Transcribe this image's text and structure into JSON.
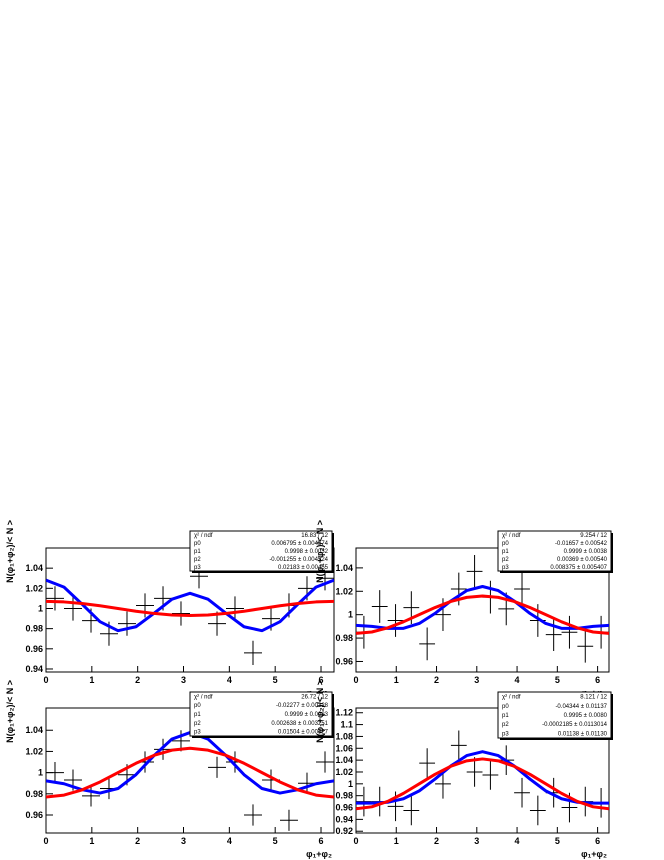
{
  "chart_data": [
    {
      "type": "errorbar",
      "ylabel": "N(φ₁+φ₂)/< N >",
      "xlabel": "φ₁+φ₂",
      "stats": [
        {
          "label": "χ² / ndf",
          "value": "16.83 / 12"
        },
        {
          "label": "p0",
          "value": "0.006795 ± 0.004574"
        },
        {
          "label": "p1",
          "value": "0.9998 ± 0.0032"
        },
        {
          "label": "p2",
          "value": "-0.001255 ± 0.004524"
        },
        {
          "label": "p3",
          "value": "0.02183 ± 0.00455"
        }
      ],
      "xlim": [
        0,
        6.2832
      ],
      "xticks": [
        0,
        1,
        2,
        3,
        4,
        5,
        6
      ],
      "ylim": [
        0.937,
        1.06
      ],
      "yticks": [
        0.94,
        0.96,
        0.98,
        1,
        1.02,
        1.04
      ],
      "points": {
        "color": "#000000",
        "x": [
          0.196,
          0.589,
          0.982,
          1.374,
          1.767,
          2.16,
          2.553,
          2.945,
          3.338,
          3.731,
          4.123,
          4.516,
          4.909,
          5.301,
          5.694,
          6.087
        ],
        "values": [
          1.01,
          1.0,
          0.988,
          0.975,
          0.985,
          1.003,
          1.01,
          0.995,
          1.032,
          0.985,
          1.0,
          0.956,
          0.99,
          1.003,
          1.02,
          1.03
        ],
        "xerr": 0.196,
        "yerr": 0.012
      },
      "series": [
        {
          "color": "#0000ff",
          "x": [
            0,
            0.393,
            0.785,
            1.178,
            1.571,
            1.963,
            2.356,
            2.749,
            3.142,
            3.534,
            3.927,
            4.32,
            4.712,
            5.105,
            5.498,
            5.89,
            6.283
          ],
          "values": [
            1.0281,
            1.0212,
            1.0044,
            0.9869,
            0.978,
            0.9819,
            0.9952,
            1.0092,
            1.0151,
            1.0092,
            0.9952,
            0.9819,
            0.978,
            0.9869,
            1.0044,
            1.0212,
            1.0281
          ]
        },
        {
          "color": "#ff0000",
          "x": [
            0,
            0.393,
            0.785,
            1.178,
            1.571,
            1.963,
            2.356,
            2.749,
            3.142,
            3.534,
            3.927,
            4.32,
            4.712,
            5.105,
            5.498,
            5.89,
            6.283
          ],
          "values": [
            1.007,
            1.0065,
            1.0049,
            1.0027,
            1.0,
            0.9973,
            0.9951,
            0.9935,
            0.993,
            0.9935,
            0.9951,
            0.9973,
            1.0,
            1.0027,
            1.0049,
            1.0065,
            1.007
          ]
        }
      ]
    },
    {
      "type": "errorbar",
      "ylabel": "N(φ₁+φ₂)/< N >",
      "xlabel": "φ₁+φ₂",
      "stats": [
        {
          "label": "χ² / ndf",
          "value": "9.254 / 12"
        },
        {
          "label": "p0",
          "value": "-0.01657 ± 0.00542"
        },
        {
          "label": "p1",
          "value": "0.9999 ± 0.0038"
        },
        {
          "label": "p2",
          "value": "0.00369 ± 0.00540"
        },
        {
          "label": "p3",
          "value": "0.008375 ± 0.005407"
        }
      ],
      "xlim": [
        0,
        6.2832
      ],
      "xticks": [
        0,
        1,
        2,
        3,
        4,
        5,
        6
      ],
      "ylim": [
        0.951,
        1.057
      ],
      "yticks": [
        0.96,
        0.98,
        1,
        1.02,
        1.04
      ],
      "points": {
        "color": "#000000",
        "x": [
          0.196,
          0.589,
          0.982,
          1.374,
          1.767,
          2.16,
          2.553,
          2.945,
          3.338,
          3.731,
          4.123,
          4.516,
          4.909,
          5.301,
          5.694,
          6.087
        ],
        "values": [
          0.985,
          1.007,
          0.995,
          1.006,
          0.975,
          1.0,
          1.022,
          1.037,
          1.015,
          1.005,
          1.022,
          0.995,
          0.983,
          0.985,
          0.973,
          0.985
        ],
        "xerr": 0.196,
        "yerr": 0.014
      },
      "series": [
        {
          "color": "#0000ff",
          "x": [
            0,
            0.393,
            0.785,
            1.178,
            1.571,
            1.963,
            2.356,
            2.749,
            3.142,
            3.534,
            3.927,
            4.32,
            4.712,
            5.105,
            5.498,
            5.89,
            6.283
          ],
          "values": [
            0.9909,
            0.99,
            0.9883,
            0.9883,
            0.9925,
            1.0011,
            1.0117,
            1.0206,
            1.0241,
            1.0206,
            1.0117,
            1.0011,
            0.9925,
            0.9883,
            0.9883,
            0.99,
            0.9909
          ]
        },
        {
          "color": "#ff0000",
          "x": [
            0,
            0.393,
            0.785,
            1.178,
            1.571,
            1.963,
            2.356,
            2.749,
            3.142,
            3.534,
            3.927,
            4.32,
            4.712,
            5.105,
            5.498,
            5.89,
            6.283
          ],
          "values": [
            0.984,
            0.9852,
            0.9887,
            0.9939,
            1.0,
            1.0061,
            1.0113,
            1.0148,
            1.016,
            1.0148,
            1.0113,
            1.0061,
            1.0,
            0.9939,
            0.9887,
            0.9852,
            0.984
          ]
        }
      ]
    },
    {
      "type": "errorbar",
      "ylabel": "N(φ₁+φ₂)/< N >",
      "xlabel": "φ₁+φ₂",
      "stats": [
        {
          "label": "χ² / ndf",
          "value": "26.72 / 12"
        },
        {
          "label": "p0",
          "value": "-0.02277 ± 0.00328"
        },
        {
          "label": "p1",
          "value": "0.9999 ± 0.0023"
        },
        {
          "label": "p2",
          "value": "0.002638 ± 0.003251"
        },
        {
          "label": "p3",
          "value": "0.01504 ± 0.00327"
        }
      ],
      "xlim": [
        0,
        6.2832
      ],
      "xticks": [
        0,
        1,
        2,
        3,
        4,
        5,
        6
      ],
      "ylim": [
        0.943,
        1.061
      ],
      "yticks": [
        0.96,
        0.98,
        1,
        1.02,
        1.04
      ],
      "points": {
        "color": "#000000",
        "x": [
          0.196,
          0.589,
          0.982,
          1.374,
          1.767,
          2.16,
          2.553,
          2.945,
          3.338,
          3.731,
          4.123,
          4.516,
          4.909,
          5.301,
          5.694,
          6.087
        ],
        "values": [
          1.0,
          0.993,
          0.978,
          0.985,
          0.998,
          1.01,
          1.022,
          1.03,
          1.043,
          1.005,
          1.01,
          0.96,
          0.993,
          0.955,
          0.99,
          1.01
        ],
        "xerr": 0.196,
        "yerr": 0.01
      },
      "series": [
        {
          "color": "#0000ff",
          "x": [
            0,
            0.393,
            0.785,
            1.178,
            1.571,
            1.963,
            2.356,
            2.749,
            3.142,
            3.534,
            3.927,
            4.32,
            4.712,
            5.105,
            5.498,
            5.89,
            6.283
          ],
          "values": [
            0.9922,
            0.9895,
            0.9839,
            0.9807,
            0.985,
            0.9981,
            1.0161,
            1.0317,
            1.0378,
            1.0317,
            1.0161,
            0.9981,
            0.985,
            0.9807,
            0.9839,
            0.9895,
            0.9922
          ]
        },
        {
          "color": "#ff0000",
          "x": [
            0,
            0.393,
            0.785,
            1.178,
            1.571,
            1.963,
            2.356,
            2.749,
            3.142,
            3.534,
            3.927,
            4.32,
            4.712,
            5.105,
            5.498,
            5.89,
            6.283
          ],
          "values": [
            0.977,
            0.9788,
            0.9837,
            0.9912,
            1.0,
            1.0088,
            1.0163,
            1.0212,
            1.023,
            1.0212,
            1.0163,
            1.0088,
            1.0,
            0.9912,
            0.9837,
            0.9788,
            0.977
          ]
        }
      ]
    },
    {
      "type": "errorbar",
      "ylabel": "N(φ₁+φ₂)/< N >",
      "xlabel": "φ₁+φ₂",
      "stats": [
        {
          "label": "χ² / ndf",
          "value": "8.121 / 12"
        },
        {
          "label": "p0",
          "value": "-0.04344 ± 0.01137"
        },
        {
          "label": "p1",
          "value": "0.9995 ± 0.0080"
        },
        {
          "label": "p2",
          "value": "-0.0002185 ± 0.0113014"
        },
        {
          "label": "p3",
          "value": "0.01138 ± 0.01130"
        }
      ],
      "xlim": [
        0,
        6.2832
      ],
      "xticks": [
        0,
        1,
        2,
        3,
        4,
        5,
        6
      ],
      "ylim": [
        0.917,
        1.128
      ],
      "yticks": [
        0.92,
        0.94,
        0.96,
        0.98,
        1,
        1.02,
        1.04,
        1.06,
        1.08,
        1.1,
        1.12
      ],
      "points": {
        "color": "#000000",
        "x": [
          0.196,
          0.589,
          0.982,
          1.374,
          1.767,
          2.16,
          2.553,
          2.945,
          3.338,
          3.731,
          4.123,
          4.516,
          4.909,
          5.301,
          5.694,
          6.087
        ],
        "values": [
          0.97,
          0.97,
          0.962,
          0.955,
          1.035,
          1.0,
          1.065,
          1.02,
          1.015,
          1.04,
          0.985,
          0.955,
          0.985,
          0.96,
          0.97,
          0.968
        ],
        "xerr": 0.196,
        "yerr": 0.025
      },
      "series": [
        {
          "color": "#0000ff",
          "x": [
            0,
            0.393,
            0.785,
            1.178,
            1.571,
            1.963,
            2.356,
            2.749,
            3.142,
            3.534,
            3.927,
            4.32,
            4.712,
            5.105,
            5.498,
            5.89,
            6.283
          ],
          "values": [
            0.9675,
            0.9675,
            0.9688,
            0.9748,
            0.9881,
            1.008,
            1.0302,
            1.0477,
            1.0543,
            1.0477,
            1.0302,
            1.008,
            0.9881,
            0.9748,
            0.9688,
            0.9675,
            0.9675
          ]
        },
        {
          "color": "#ff0000",
          "x": [
            0,
            0.393,
            0.785,
            1.178,
            1.571,
            1.963,
            2.356,
            2.749,
            3.142,
            3.534,
            3.927,
            4.32,
            4.712,
            5.105,
            5.498,
            5.89,
            6.283
          ],
          "values": [
            0.958,
            0.9612,
            0.9703,
            0.9839,
            1.0,
            1.0161,
            1.0297,
            1.0388,
            1.042,
            1.0388,
            1.0297,
            1.0161,
            1.0,
            0.9839,
            0.9703,
            0.9612,
            0.958
          ]
        }
      ]
    }
  ]
}
